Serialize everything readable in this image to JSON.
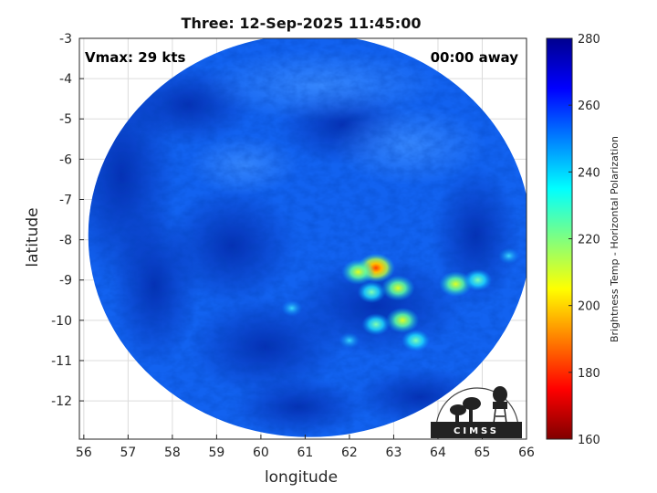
{
  "title": "Three: 12-Sep-2025 11:45:00",
  "annotations": {
    "vmax": "Vmax: 29 kts",
    "away": "00:00 away"
  },
  "xaxis": {
    "label": "longitude",
    "range": [
      55.9,
      66
    ],
    "ticks": [
      56,
      57,
      58,
      59,
      60,
      61,
      62,
      63,
      64,
      65,
      66
    ]
  },
  "yaxis": {
    "label": "latitude",
    "range": [
      -12.95,
      -3
    ],
    "ticks": [
      -3,
      -4,
      -5,
      -6,
      -7,
      -8,
      -9,
      -10,
      -11,
      -12
    ]
  },
  "colorbar": {
    "label": "Brightness Temp - Horizontal Polarization",
    "range": [
      160,
      280
    ],
    "ticks": [
      280,
      260,
      240,
      220,
      200,
      180,
      160
    ],
    "colormap": "jet"
  },
  "logo_text": "CIMSS",
  "chart_data": {
    "type": "heatmap",
    "title": "Three: 12-Sep-2025 11:45:00",
    "xlabel": "longitude",
    "ylabel": "latitude",
    "xlim": [
      55.9,
      66
    ],
    "ylim": [
      -12.95,
      -3
    ],
    "grid": true,
    "background_tb": 255,
    "swath_footprint": {
      "center_lon": 61.1,
      "center_lat": -7.9,
      "radius_lon": 5.0,
      "radius_lat": 5.0
    },
    "features": [
      {
        "desc": "warm core peak",
        "lon": 62.6,
        "lat": -8.7,
        "tb": 188
      },
      {
        "desc": "warm cluster",
        "lon": 62.2,
        "lat": -8.8,
        "tb": 212
      },
      {
        "desc": "warm cluster",
        "lon": 63.1,
        "lat": -9.2,
        "tb": 208
      },
      {
        "desc": "warm cluster",
        "lon": 63.2,
        "lat": -10.0,
        "tb": 212
      },
      {
        "desc": "warm cluster",
        "lon": 62.6,
        "lat": -10.1,
        "tb": 225
      },
      {
        "desc": "warm cluster",
        "lon": 62.5,
        "lat": -9.3,
        "tb": 225
      },
      {
        "desc": "warm band east",
        "lon": 64.4,
        "lat": -9.1,
        "tb": 215
      },
      {
        "desc": "warm band east",
        "lon": 64.9,
        "lat": -9.0,
        "tb": 228
      },
      {
        "desc": "warm spot",
        "lon": 63.5,
        "lat": -10.5,
        "tb": 228
      },
      {
        "desc": "warm spot",
        "lon": 60.7,
        "lat": -9.7,
        "tb": 238
      },
      {
        "desc": "warm spot",
        "lon": 65.6,
        "lat": -8.4,
        "tb": 240
      },
      {
        "desc": "warm spot",
        "lon": 62.0,
        "lat": -10.5,
        "tb": 235
      }
    ]
  }
}
